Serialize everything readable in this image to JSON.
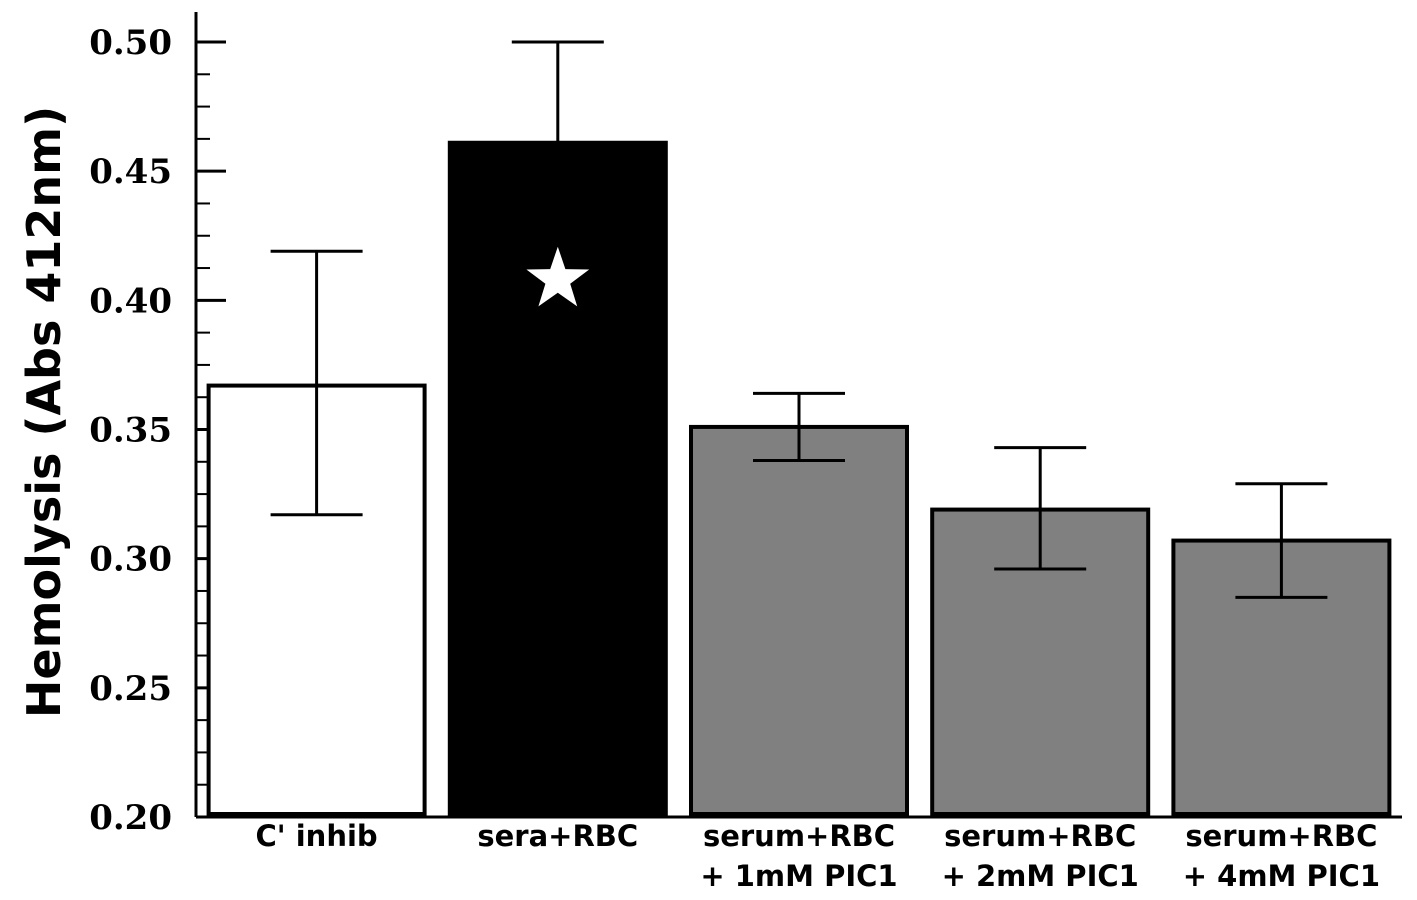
{
  "chart_data": {
    "type": "bar",
    "title": "",
    "xlabel": "",
    "ylabel": "Hemolysis (Abs 412nm)",
    "ylim": [
      0.2,
      0.5
    ],
    "yticks": [
      "0.20",
      "0.25",
      "0.30",
      "0.35",
      "0.40",
      "0.45",
      "0.50"
    ],
    "ytick_values": [
      0.2,
      0.25,
      0.3,
      0.35,
      0.4,
      0.45,
      0.5
    ],
    "minor_tick_step": 0.0125,
    "grid": false,
    "legend": "none",
    "categories": [
      [
        "C' inhib"
      ],
      [
        "sera+RBC"
      ],
      [
        "serum+RBC",
        "+ 1mM PIC1"
      ],
      [
        "serum+RBC",
        "+ 2mM PIC1"
      ],
      [
        "serum+RBC",
        "+ 4mM PIC1"
      ]
    ],
    "values": [
      0.367,
      0.461,
      0.351,
      0.319,
      0.307
    ],
    "error_high": [
      0.419,
      0.5,
      0.364,
      0.343,
      0.329
    ],
    "error_low": [
      0.317,
      0.461,
      0.338,
      0.296,
      0.285
    ],
    "colors": [
      "#ffffff",
      "#000000",
      "#808080",
      "#808080",
      "#808080"
    ],
    "significance_marker": {
      "category_index": 1,
      "symbol": "star",
      "value": 0.408
    }
  }
}
